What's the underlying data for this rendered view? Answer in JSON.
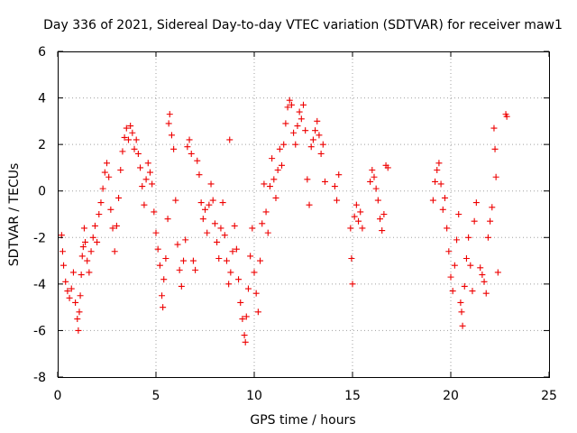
{
  "chart_data": {
    "type": "scatter",
    "title": "Day 336 of 2021, Sidereal Day-to-day VTEC variation (SDTVAR) for receiver maw1",
    "xlabel": "GPS time / hours",
    "ylabel": "SDTVAR / TECUs",
    "xlim": [
      0,
      25
    ],
    "ylim": [
      -8,
      6
    ],
    "x_ticks": [
      "0",
      "5",
      "10",
      "15",
      "20",
      "25"
    ],
    "y_ticks": [
      "-8",
      "-6",
      "-4",
      "-2",
      "0",
      "2",
      "4",
      "6"
    ],
    "grid": true,
    "marker": "+",
    "color": "#ee0000",
    "series": [
      {
        "name": "maw1",
        "points": [
          [
            0.2,
            -1.9
          ],
          [
            0.25,
            -2.6
          ],
          [
            0.3,
            -3.2
          ],
          [
            0.4,
            -3.9
          ],
          [
            0.5,
            -4.3
          ],
          [
            0.6,
            -4.6
          ],
          [
            0.7,
            -4.2
          ],
          [
            0.8,
            -3.5
          ],
          [
            0.9,
            -4.8
          ],
          [
            1.0,
            -5.5
          ],
          [
            1.05,
            -6.0
          ],
          [
            1.1,
            -5.2
          ],
          [
            1.15,
            -4.5
          ],
          [
            1.2,
            -3.6
          ],
          [
            1.25,
            -2.8
          ],
          [
            1.3,
            -2.4
          ],
          [
            1.35,
            -1.6
          ],
          [
            1.4,
            -2.2
          ],
          [
            1.5,
            -3.0
          ],
          [
            1.6,
            -3.5
          ],
          [
            1.7,
            -2.6
          ],
          [
            1.8,
            -2.0
          ],
          [
            1.9,
            -1.5
          ],
          [
            2.0,
            -2.2
          ],
          [
            2.1,
            -1.0
          ],
          [
            2.2,
            -0.5
          ],
          [
            2.3,
            0.1
          ],
          [
            2.4,
            0.8
          ],
          [
            2.5,
            1.2
          ],
          [
            2.6,
            0.6
          ],
          [
            2.7,
            -0.8
          ],
          [
            2.8,
            -1.6
          ],
          [
            2.9,
            -2.6
          ],
          [
            3.0,
            -1.5
          ],
          [
            3.1,
            -0.3
          ],
          [
            3.2,
            0.9
          ],
          [
            3.3,
            1.7
          ],
          [
            3.4,
            2.3
          ],
          [
            3.5,
            2.7
          ],
          [
            3.6,
            2.2
          ],
          [
            3.7,
            2.8
          ],
          [
            3.8,
            2.5
          ],
          [
            3.9,
            1.8
          ],
          [
            4.0,
            2.2
          ],
          [
            4.1,
            1.6
          ],
          [
            4.2,
            1.0
          ],
          [
            4.3,
            0.2
          ],
          [
            4.4,
            -0.6
          ],
          [
            4.5,
            0.5
          ],
          [
            4.6,
            1.2
          ],
          [
            4.7,
            0.8
          ],
          [
            4.8,
            0.3
          ],
          [
            4.9,
            -0.9
          ],
          [
            5.0,
            -1.8
          ],
          [
            5.1,
            -2.5
          ],
          [
            5.2,
            -3.2
          ],
          [
            5.3,
            -4.5
          ],
          [
            5.35,
            -5.0
          ],
          [
            5.4,
            -3.8
          ],
          [
            5.5,
            -2.9
          ],
          [
            5.6,
            -1.2
          ],
          [
            5.65,
            2.9
          ],
          [
            5.7,
            3.3
          ],
          [
            5.8,
            2.4
          ],
          [
            5.9,
            1.8
          ],
          [
            6.0,
            -0.4
          ],
          [
            6.1,
            -2.3
          ],
          [
            6.2,
            -3.4
          ],
          [
            6.3,
            -4.1
          ],
          [
            6.4,
            -3.0
          ],
          [
            6.5,
            -2.1
          ],
          [
            6.6,
            1.9
          ],
          [
            6.7,
            2.2
          ],
          [
            6.8,
            1.6
          ],
          [
            6.9,
            -3.0
          ],
          [
            7.0,
            -3.4
          ],
          [
            7.1,
            1.3
          ],
          [
            7.2,
            0.7
          ],
          [
            7.3,
            -0.5
          ],
          [
            7.4,
            -1.2
          ],
          [
            7.5,
            -0.8
          ],
          [
            7.6,
            -1.8
          ],
          [
            7.7,
            -0.6
          ],
          [
            7.8,
            0.3
          ],
          [
            7.9,
            -0.4
          ],
          [
            8.0,
            -1.4
          ],
          [
            8.1,
            -2.2
          ],
          [
            8.2,
            -2.9
          ],
          [
            8.3,
            -1.6
          ],
          [
            8.4,
            -0.5
          ],
          [
            8.5,
            -1.9
          ],
          [
            8.6,
            -3.0
          ],
          [
            8.7,
            -4.0
          ],
          [
            8.75,
            2.2
          ],
          [
            8.8,
            -3.5
          ],
          [
            8.9,
            -2.6
          ],
          [
            9.0,
            -1.5
          ],
          [
            9.1,
            -2.5
          ],
          [
            9.2,
            -3.8
          ],
          [
            9.3,
            -4.8
          ],
          [
            9.4,
            -5.5
          ],
          [
            9.5,
            -6.2
          ],
          [
            9.55,
            -6.5
          ],
          [
            9.6,
            -5.4
          ],
          [
            9.7,
            -4.2
          ],
          [
            9.8,
            -2.8
          ],
          [
            9.9,
            -1.6
          ],
          [
            10.0,
            -3.5
          ],
          [
            10.1,
            -4.4
          ],
          [
            10.2,
            -5.2
          ],
          [
            10.3,
            -3.0
          ],
          [
            10.4,
            -1.4
          ],
          [
            10.5,
            0.3
          ],
          [
            10.6,
            -0.9
          ],
          [
            10.7,
            -1.8
          ],
          [
            10.8,
            0.2
          ],
          [
            10.9,
            1.4
          ],
          [
            11.0,
            0.5
          ],
          [
            11.1,
            -0.3
          ],
          [
            11.2,
            0.9
          ],
          [
            11.3,
            1.8
          ],
          [
            11.4,
            1.1
          ],
          [
            11.5,
            2.0
          ],
          [
            11.6,
            2.9
          ],
          [
            11.7,
            3.6
          ],
          [
            11.8,
            3.9
          ],
          [
            11.9,
            3.7
          ],
          [
            12.0,
            2.5
          ],
          [
            12.1,
            2.0
          ],
          [
            12.2,
            2.8
          ],
          [
            12.3,
            3.4
          ],
          [
            12.4,
            3.1
          ],
          [
            12.5,
            3.7
          ],
          [
            12.6,
            2.6
          ],
          [
            12.7,
            0.5
          ],
          [
            12.8,
            -0.6
          ],
          [
            12.9,
            1.9
          ],
          [
            13.0,
            2.2
          ],
          [
            13.1,
            2.6
          ],
          [
            13.2,
            3.0
          ],
          [
            13.3,
            2.4
          ],
          [
            13.4,
            1.6
          ],
          [
            13.5,
            2.0
          ],
          [
            13.6,
            0.4
          ],
          [
            14.1,
            0.2
          ],
          [
            14.2,
            -0.4
          ],
          [
            14.3,
            0.7
          ],
          [
            14.9,
            -1.6
          ],
          [
            14.95,
            -2.9
          ],
          [
            15.0,
            -4.0
          ],
          [
            15.1,
            -1.1
          ],
          [
            15.2,
            -0.6
          ],
          [
            15.3,
            -1.3
          ],
          [
            15.4,
            -0.9
          ],
          [
            15.5,
            -1.6
          ],
          [
            15.9,
            0.4
          ],
          [
            16.0,
            0.9
          ],
          [
            16.1,
            0.6
          ],
          [
            16.2,
            0.1
          ],
          [
            16.3,
            -0.4
          ],
          [
            16.4,
            -1.2
          ],
          [
            16.5,
            -1.7
          ],
          [
            16.6,
            -1.0
          ],
          [
            16.7,
            1.1
          ],
          [
            16.8,
            1.0
          ],
          [
            19.1,
            -0.4
          ],
          [
            19.2,
            0.4
          ],
          [
            19.3,
            0.9
          ],
          [
            19.4,
            1.2
          ],
          [
            19.5,
            0.3
          ],
          [
            19.6,
            -0.8
          ],
          [
            19.7,
            -0.3
          ],
          [
            19.8,
            -1.6
          ],
          [
            19.9,
            -2.6
          ],
          [
            20.0,
            -3.7
          ],
          [
            20.1,
            -4.3
          ],
          [
            20.2,
            -3.2
          ],
          [
            20.3,
            -2.1
          ],
          [
            20.4,
            -1.0
          ],
          [
            20.5,
            -4.8
          ],
          [
            20.55,
            -5.2
          ],
          [
            20.6,
            -5.8
          ],
          [
            20.7,
            -4.1
          ],
          [
            20.8,
            -2.9
          ],
          [
            20.9,
            -2.0
          ],
          [
            21.0,
            -3.2
          ],
          [
            21.1,
            -4.3
          ],
          [
            21.2,
            -1.3
          ],
          [
            21.3,
            -0.5
          ],
          [
            21.5,
            -3.3
          ],
          [
            21.6,
            -3.6
          ],
          [
            21.7,
            -3.9
          ],
          [
            21.8,
            -4.4
          ],
          [
            21.9,
            -2.0
          ],
          [
            22.0,
            -1.3
          ],
          [
            22.1,
            -0.7
          ],
          [
            22.2,
            2.7
          ],
          [
            22.25,
            1.8
          ],
          [
            22.3,
            0.6
          ],
          [
            22.4,
            -3.5
          ],
          [
            22.8,
            3.3
          ],
          [
            22.85,
            3.2
          ]
        ]
      }
    ]
  }
}
